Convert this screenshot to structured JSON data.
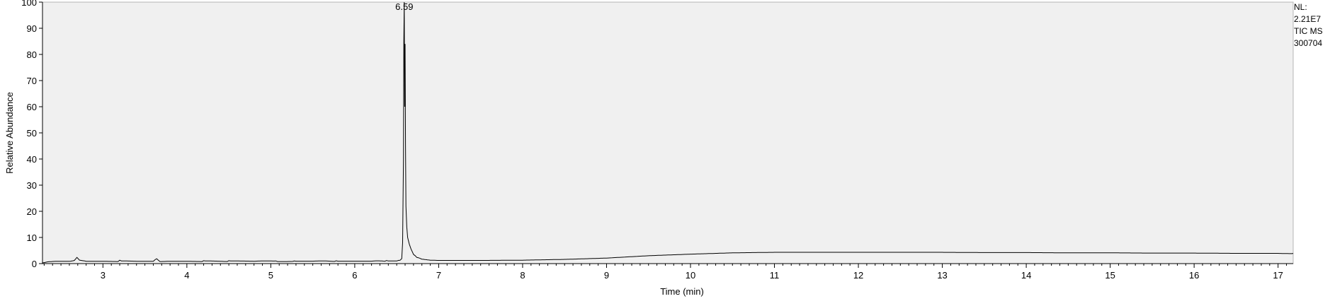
{
  "chart_data": {
    "type": "line",
    "xlabel": "Time (min)",
    "ylabel": "Relative Abundance",
    "xlim": [
      2.28,
      17.18
    ],
    "ylim": [
      0,
      100
    ],
    "x_ticks": [
      3,
      4,
      5,
      6,
      7,
      8,
      9,
      10,
      11,
      12,
      13,
      14,
      15,
      16,
      17
    ],
    "y_ticks": [
      0,
      10,
      20,
      30,
      40,
      50,
      60,
      70,
      80,
      90,
      100
    ],
    "grid": false,
    "peak_label": {
      "text": "6.59",
      "x": 6.59,
      "y": 100
    },
    "info_lines": [
      "NL:",
      "2.21E7",
      "TIC  MS",
      "300704"
    ],
    "colors": {
      "plot_background": "#f0f0f0",
      "line": "#000000",
      "axis": "#000000"
    },
    "series": [
      {
        "x": [
          2.28,
          2.35,
          2.45,
          2.6,
          2.66,
          2.69,
          2.72,
          2.8,
          3.0,
          3.18,
          3.2,
          3.22,
          3.4,
          3.6,
          3.64,
          3.68,
          3.8,
          4.0,
          4.18,
          4.2,
          4.22,
          4.4,
          4.48,
          4.5,
          4.52,
          4.8,
          5.04,
          5.06,
          5.08,
          5.26,
          5.28,
          5.3,
          5.5,
          5.76,
          5.78,
          5.8,
          6.0,
          6.2,
          6.36,
          6.38,
          6.4,
          6.5,
          6.54,
          6.56,
          6.57,
          6.58,
          6.585,
          6.59,
          6.595,
          6.6,
          6.605,
          6.61,
          6.62,
          6.63,
          6.65,
          6.67,
          6.7,
          6.74,
          6.8,
          6.9,
          7.0,
          7.2,
          7.5,
          8.0,
          8.5,
          9.0,
          9.5,
          10.0,
          10.5,
          11.0,
          11.5,
          12.0,
          12.5,
          13.0,
          13.5,
          14.0,
          14.5,
          15.0,
          15.5,
          16.0,
          16.5,
          17.0,
          17.18
        ],
        "y": [
          0.4,
          0.7,
          0.9,
          0.9,
          1.3,
          2.3,
          1.2,
          0.9,
          0.9,
          0.9,
          1.3,
          0.9,
          0.9,
          0.9,
          1.8,
          0.9,
          0.9,
          0.9,
          0.9,
          1.1,
          0.9,
          0.9,
          0.9,
          1.1,
          0.9,
          0.9,
          0.9,
          1.1,
          0.9,
          0.9,
          1.1,
          0.9,
          0.9,
          0.9,
          1.2,
          0.9,
          0.9,
          0.9,
          1.0,
          1.3,
          1.0,
          1.0,
          1.2,
          2.0,
          8.0,
          40.0,
          85.0,
          100.0,
          60.0,
          84.0,
          45.0,
          22.0,
          14.0,
          10.0,
          7.5,
          5.5,
          3.5,
          2.3,
          1.7,
          1.3,
          1.2,
          1.2,
          1.2,
          1.3,
          1.6,
          2.1,
          3.0,
          3.6,
          4.1,
          4.3,
          4.3,
          4.3,
          4.3,
          4.3,
          4.2,
          4.2,
          4.1,
          4.1,
          4.0,
          4.0,
          3.9,
          3.9,
          3.9
        ]
      }
    ]
  }
}
